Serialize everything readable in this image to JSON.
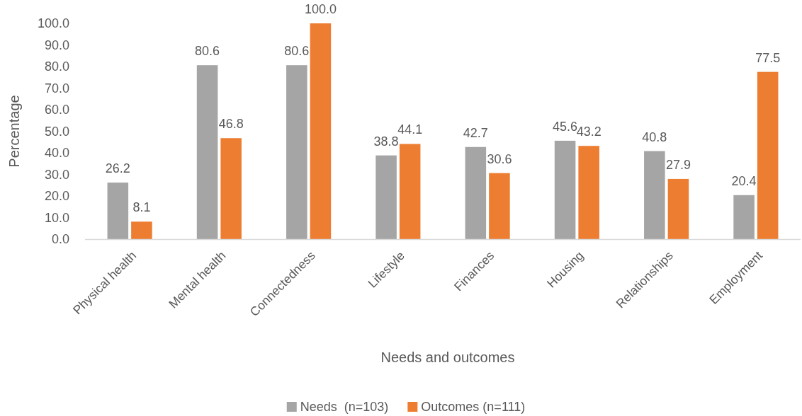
{
  "chart_data": {
    "type": "bar",
    "xlabel": "Needs and outcomes",
    "ylabel": "Percentage",
    "categories": [
      "Physical health",
      "Mental health",
      "Connectedness",
      "Lifestyle",
      "Finances",
      "Housing",
      "Relationships",
      "Employment"
    ],
    "series": [
      {
        "name": "Needs  (n=103)",
        "color": "#a5a5a5",
        "values": [
          26.2,
          80.6,
          80.6,
          38.8,
          42.7,
          45.6,
          40.8,
          20.4
        ],
        "value_labels": [
          "26.2",
          "80.6",
          "80.6",
          "38.8",
          "42.7",
          "45.6",
          "40.8",
          "20.4"
        ]
      },
      {
        "name": "Outcomes (n=111)",
        "color": "#ed7d31",
        "values": [
          8.1,
          46.8,
          100.0,
          44.1,
          30.6,
          43.2,
          27.9,
          77.5
        ],
        "value_labels": [
          "8.1",
          "46.8",
          "100.0",
          "44.1",
          "30.6",
          "43.2",
          "27.9",
          "77.5"
        ]
      }
    ],
    "ylim": [
      0,
      100
    ],
    "yticks": [
      {
        "value": 0,
        "label": "0.0"
      },
      {
        "value": 10,
        "label": "10.0"
      },
      {
        "value": 20,
        "label": "20.0"
      },
      {
        "value": 30,
        "label": "30.0"
      },
      {
        "value": 40,
        "label": "40.0"
      },
      {
        "value": 50,
        "label": "50.0"
      },
      {
        "value": 60,
        "label": "60.0"
      },
      {
        "value": 70,
        "label": "70.0"
      },
      {
        "value": 80,
        "label": "80.0"
      },
      {
        "value": 90,
        "label": "90.0"
      },
      {
        "value": 100,
        "label": "100.0"
      }
    ],
    "grid": false,
    "legend": "bottom"
  }
}
